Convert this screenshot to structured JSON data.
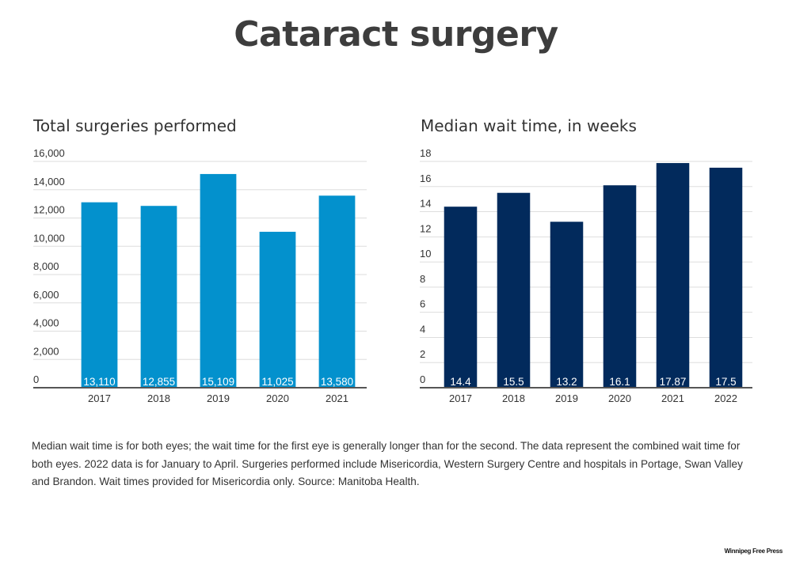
{
  "title": "Cataract surgery",
  "note": "Median wait time is for both eyes; the wait time for the first eye is generally longer than for the second. The data represent the combined wait time for both eyes.  2022 data is for January to April.  Surgeries performed include Misericordia, Western Surgery Centre and hospitals in Portage, Swan Valley and Brandon. Wait times provided for Misericordia only. Source: Manitoba Health.",
  "brand": "Winnipeg Free Press",
  "colors": {
    "surgeries_bar": "#0391cd",
    "wait_bar": "#022a5c",
    "grid": "#dddddd",
    "axis": "#555555"
  },
  "chart_data": [
    {
      "type": "bar",
      "title": "Total surgeries performed",
      "xlabel": "",
      "ylabel": "",
      "categories": [
        "2017",
        "2018",
        "2019",
        "2020",
        "2021"
      ],
      "values": [
        13110,
        12855,
        15109,
        11025,
        13580
      ],
      "data_labels": [
        "13,110",
        "12,855",
        "15,109",
        "11,025",
        "13,580"
      ],
      "ylim": [
        0,
        16000
      ],
      "yticks": [
        0,
        2000,
        4000,
        6000,
        8000,
        10000,
        12000,
        14000,
        16000
      ],
      "ytick_labels": [
        "0",
        "2,000",
        "4,000",
        "6,000",
        "8,000",
        "10,000",
        "12,000",
        "14,000",
        "16,000"
      ],
      "grid": true,
      "legend": "none"
    },
    {
      "type": "bar",
      "title": "Median wait time, in weeks",
      "xlabel": "",
      "ylabel": "",
      "categories": [
        "2017",
        "2018",
        "2019",
        "2020",
        "2021",
        "2022"
      ],
      "values": [
        14.4,
        15.5,
        13.2,
        16.1,
        17.87,
        17.5
      ],
      "data_labels": [
        "14.4",
        "15.5",
        "13.2",
        "16.1",
        "17.87",
        "17.5"
      ],
      "ylim": [
        0,
        18
      ],
      "yticks": [
        0,
        2,
        4,
        6,
        8,
        10,
        12,
        14,
        16,
        18
      ],
      "ytick_labels": [
        "0",
        "2",
        "4",
        "6",
        "8",
        "10",
        "12",
        "14",
        "16",
        "18"
      ],
      "grid": true,
      "legend": "none"
    }
  ]
}
